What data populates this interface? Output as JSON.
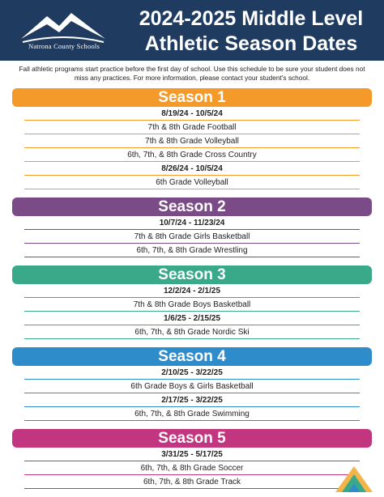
{
  "header": {
    "logo_text": "Natrona County Schools",
    "title_lines": [
      "2024-2025 Middle Level",
      "Athletic Season Dates"
    ]
  },
  "intro": "Fall athletic programs start practice before the first day of school. Use this schedule to be sure your student does not miss any practices. For more information, please contact your student's school.",
  "seasons": [
    {
      "title": "Season 1",
      "color": "#f39a2b",
      "groups": [
        {
          "dates": "8/19/24 - 10/5/24",
          "sports": [
            "7th & 8th Grade Football",
            "7th & 8th Grade Volleyball",
            "6th, 7th, & 8th Grade Cross Country"
          ]
        },
        {
          "dates": "8/26/24 - 10/5/24",
          "sports": [
            "6th Grade Volleyball"
          ]
        }
      ]
    },
    {
      "title": "Season 2",
      "color": "#7a4b86",
      "groups": [
        {
          "dates": "10/7/24 - 11/23/24",
          "sports": [
            "7th & 8th Grade Girls Basketball",
            "6th, 7th, & 8th Grade Wrestling"
          ]
        }
      ]
    },
    {
      "title": "Season 3",
      "color": "#3aa98a",
      "groups": [
        {
          "dates": "12/2/24 - 2/1/25",
          "sports": [
            "7th & 8th Grade Boys Basketball"
          ]
        },
        {
          "dates": "1/6/25 - 2/15/25",
          "sports": [
            "6th, 7th, & 8th Grade Nordic Ski"
          ]
        }
      ]
    },
    {
      "title": "Season 4",
      "color": "#2f8ccb",
      "groups": [
        {
          "dates": "2/10/25 - 3/22/25",
          "sports": [
            "6th Grade Boys & Girls Basketball"
          ]
        },
        {
          "dates": "2/17/25 - 3/22/25",
          "sports": [
            "6th, 7th, & 8th Grade Swimming"
          ]
        }
      ]
    },
    {
      "title": "Season 5",
      "color": "#c2367f",
      "groups": [
        {
          "dates": "3/31/25 - 5/17/25",
          "sports": [
            "6th, 7th, & 8th Grade Soccer",
            "6th, 7th, & 8th Grade Track"
          ]
        }
      ]
    }
  ]
}
